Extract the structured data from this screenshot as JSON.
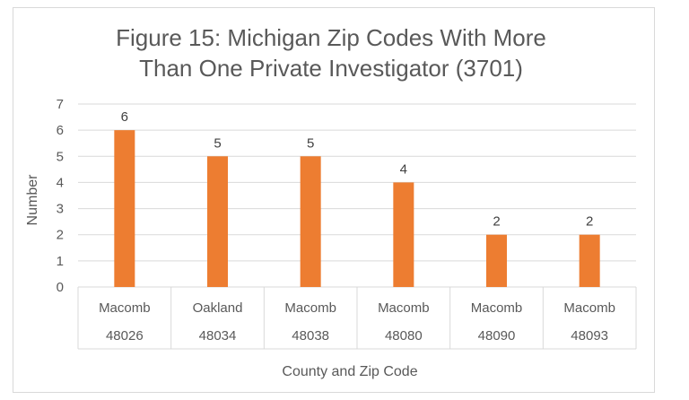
{
  "chart_data": {
    "type": "bar",
    "title_lines": [
      "Figure 15: Michigan Zip Codes With More",
      "Than One Private Investigator (3701)"
    ],
    "ylabel": "Number",
    "xlabel": "County and Zip Code",
    "ylim": [
      0,
      7
    ],
    "yticks": [
      "0",
      "1",
      "2",
      "3",
      "4",
      "5",
      "6",
      "7"
    ],
    "categories": [
      {
        "county": "Macomb",
        "zip": "48026"
      },
      {
        "county": "Oakland",
        "zip": "48034"
      },
      {
        "county": "Macomb",
        "zip": "48038"
      },
      {
        "county": "Macomb",
        "zip": "48080"
      },
      {
        "county": "Macomb",
        "zip": "48090"
      },
      {
        "county": "Macomb",
        "zip": "48093"
      }
    ],
    "values": [
      6,
      5,
      5,
      4,
      2,
      2
    ],
    "data_labels": [
      "6",
      "5",
      "5",
      "4",
      "2",
      "2"
    ],
    "grid": true,
    "legend": "none",
    "bar_color": "#ed7d31",
    "gridline_color": "#d9d9d9",
    "text_color": "#595959"
  }
}
